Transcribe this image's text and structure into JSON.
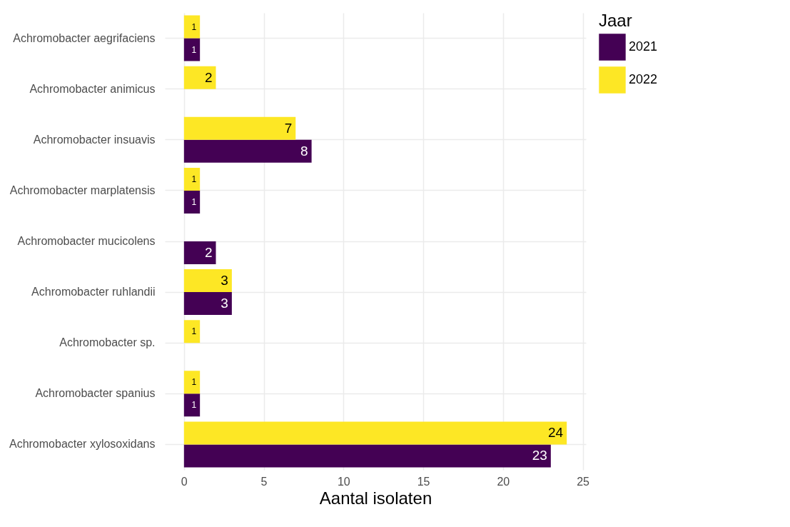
{
  "chart_data": {
    "type": "bar",
    "orientation": "horizontal",
    "xlabel": "Aantal isolaten",
    "legend_title": "Jaar",
    "legend": "right",
    "grid": true,
    "data_labels": true,
    "categories": [
      "Achromobacter aegrifaciens",
      "Achromobacter animicus",
      "Achromobacter insuavis",
      "Achromobacter marplatensis",
      "Achromobacter mucicolens",
      "Achromobacter ruhlandii",
      "Achromobacter sp.",
      "Achromobacter spanius",
      "Achromobacter xylosoxidans"
    ],
    "xlim": [
      -1.2,
      25.2
    ],
    "xticks": [
      0,
      5,
      10,
      15,
      20,
      25
    ],
    "series": [
      {
        "name": "2021",
        "color": "#440154",
        "values": [
          1,
          null,
          8,
          1,
          2,
          3,
          null,
          1,
          23
        ]
      },
      {
        "name": "2022",
        "color": "#fde725",
        "values": [
          1,
          2,
          7,
          1,
          null,
          3,
          1,
          1,
          24
        ]
      }
    ]
  }
}
